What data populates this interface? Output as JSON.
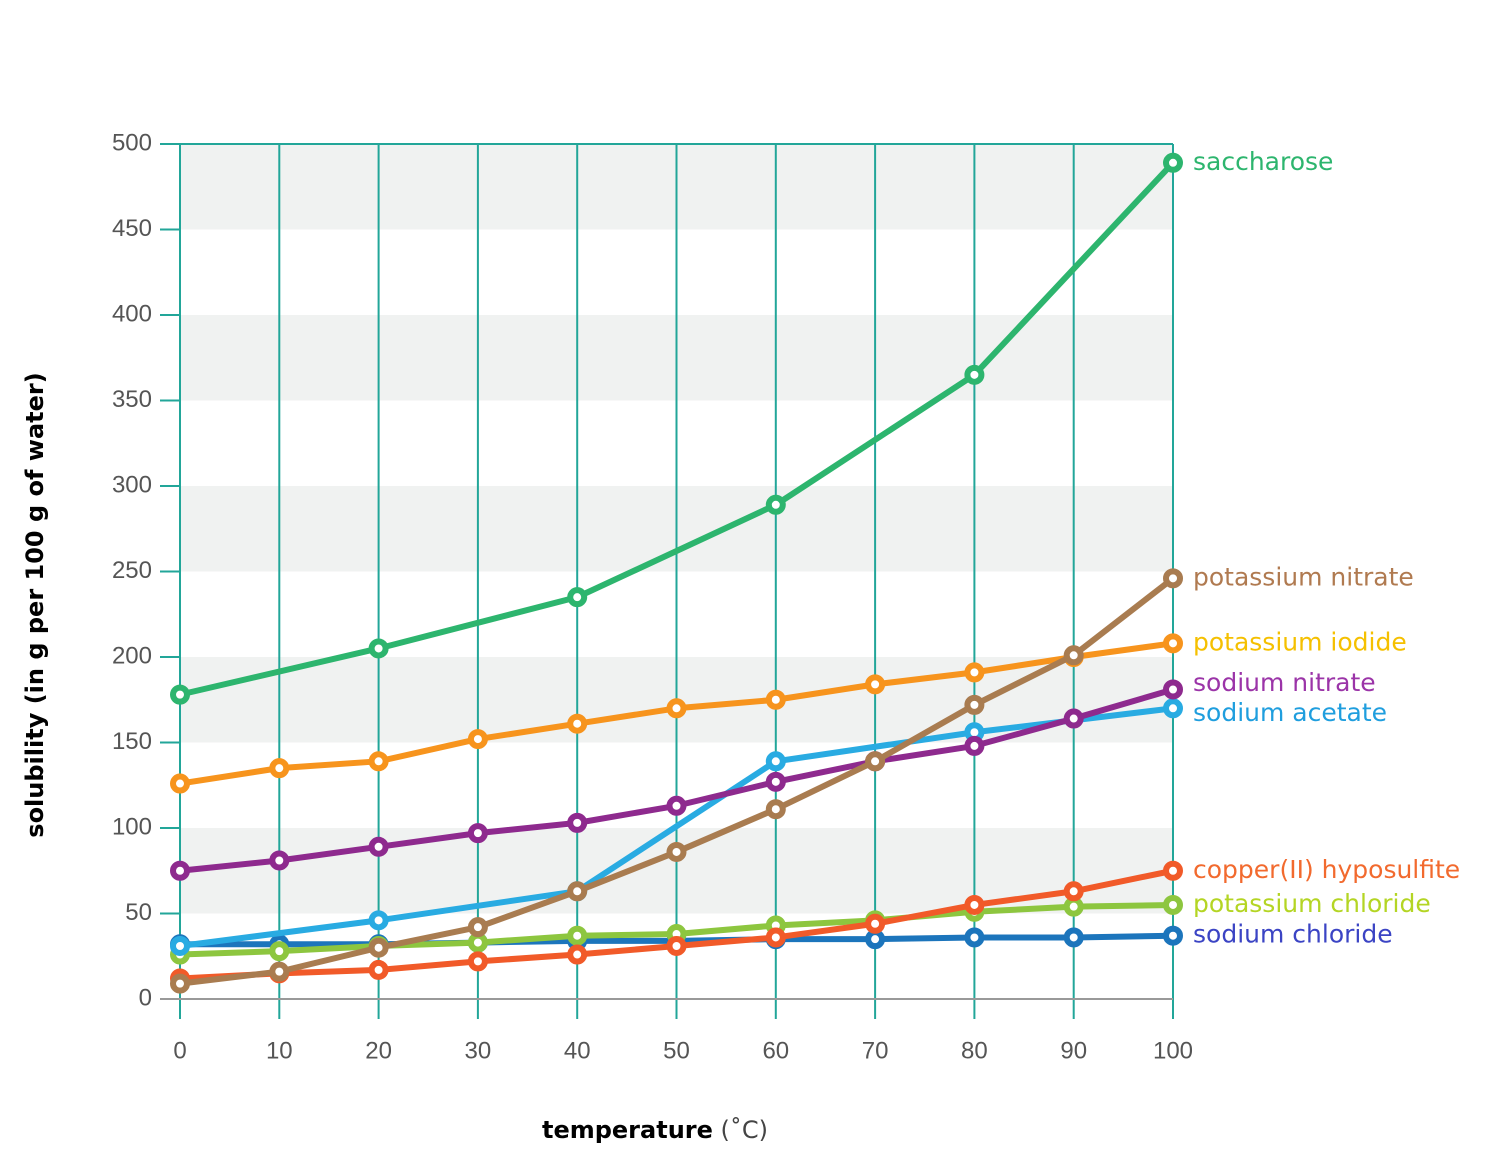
{
  "chart_data": {
    "type": "line",
    "xlabel": "temperature",
    "xlabel_unit": "(˚C)",
    "ylabel": "solubility (in g per 100 g of water)",
    "x": [
      0,
      10,
      20,
      30,
      40,
      50,
      60,
      70,
      80,
      90,
      100
    ],
    "xlim": [
      0,
      100
    ],
    "xticks": [
      0,
      10,
      20,
      30,
      40,
      50,
      60,
      70,
      80,
      90,
      100
    ],
    "ylim": [
      0,
      500
    ],
    "yticks": [
      0,
      50,
      100,
      150,
      200,
      250,
      300,
      350,
      400,
      450,
      500
    ],
    "grid_color": "#22a699",
    "band_color": "#f0f2f1",
    "series": [
      {
        "name": "saccharose",
        "color": "#2db56e",
        "label_color": "#2db56e",
        "x": [
          0,
          20,
          40,
          60,
          80,
          100
        ],
        "values": [
          178,
          205,
          235,
          289,
          365,
          489
        ]
      },
      {
        "name": "potassium nitrate",
        "color": "#a97c50",
        "label_color": "#b07a50",
        "values": [
          9,
          16,
          30,
          42,
          63,
          86,
          111,
          139,
          172,
          201,
          246
        ]
      },
      {
        "name": "potassium iodide",
        "color": "#f7941d",
        "label_color": "#f5c000",
        "values": [
          126,
          135,
          139,
          152,
          161,
          170,
          175,
          184,
          191,
          200,
          208
        ]
      },
      {
        "name": "sodium nitrate",
        "color": "#8e2a8e",
        "label_color": "#9b34a8",
        "values": [
          75,
          81,
          89,
          97,
          103,
          113,
          127,
          139,
          148,
          164,
          181
        ]
      },
      {
        "name": "sodium acetate",
        "color": "#29abe2",
        "label_color": "#1f9ede",
        "x": [
          0,
          20,
          40,
          60,
          80,
          100
        ],
        "values": [
          31,
          46,
          63,
          139,
          156,
          170
        ]
      },
      {
        "name": "copper(II) hyposulfite",
        "color": "#f15a29",
        "label_color": "#f26a2e",
        "values": [
          12,
          15,
          17,
          22,
          26,
          31,
          36,
          44,
          55,
          63,
          75
        ]
      },
      {
        "name": "potassium chloride",
        "color": "#8dc63f",
        "label_color": "#b4d524",
        "values": [
          26,
          28,
          31,
          33,
          37,
          38,
          43,
          46,
          51,
          54,
          55
        ]
      },
      {
        "name": "sodium chloride",
        "color": "#1c75bc",
        "label_color": "#3b44c4",
        "values": [
          32,
          32,
          32,
          33,
          34,
          34,
          35,
          35,
          36,
          36,
          37
        ]
      }
    ]
  }
}
